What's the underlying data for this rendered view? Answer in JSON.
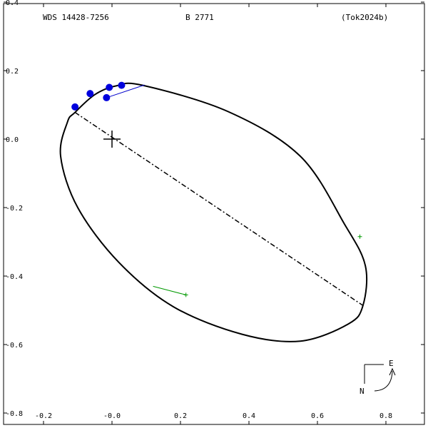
{
  "header": {
    "wds": "WDS 14428-7256",
    "discoverer": "B  2771",
    "reference": "(Tok2024b)"
  },
  "compass": {
    "east": "E",
    "north": "N"
  },
  "chart_data": {
    "type": "scatter",
    "title": "",
    "xlabel": "",
    "ylabel": "",
    "xlim": [
      -0.2,
      0.9
    ],
    "ylim": [
      -0.8,
      0.4
    ],
    "x_ticks": [
      "-0.2",
      "-0.0",
      "0.2",
      "0.4",
      "0.6",
      "0.8"
    ],
    "y_ticks": [
      "0.4",
      "0.2",
      "0.0",
      "-0.2",
      "-0.4",
      "-0.6",
      "-0.8"
    ],
    "grid": false,
    "primary_star": [
      0.0,
      0.0
    ],
    "line_of_apsides": [
      [
        -0.108,
        0.078
      ],
      [
        0.733,
        -0.486
      ]
    ],
    "orbit_points": [
      [
        0.09,
        0.157
      ],
      [
        0.34,
        0.08
      ],
      [
        0.55,
        -0.05
      ],
      [
        0.68,
        -0.25
      ],
      [
        0.74,
        -0.37
      ],
      [
        0.733,
        -0.486
      ],
      [
        0.69,
        -0.54
      ],
      [
        0.55,
        -0.59
      ],
      [
        0.38,
        -0.57
      ],
      [
        0.18,
        -0.49
      ],
      [
        0.02,
        -0.36
      ],
      [
        -0.1,
        -0.2
      ],
      [
        -0.15,
        -0.05
      ],
      [
        -0.13,
        0.05
      ],
      [
        -0.108,
        0.078
      ],
      [
        -0.05,
        0.13
      ],
      [
        0.01,
        0.155
      ],
      [
        0.09,
        0.157
      ]
    ],
    "observations_blue": [
      {
        "x": -0.108,
        "y": 0.094,
        "ox": -0.108,
        "oy": 0.094
      },
      {
        "x": -0.064,
        "y": 0.133,
        "ox": -0.064,
        "oy": 0.133
      },
      {
        "x": -0.016,
        "y": 0.121,
        "ox": 0.095,
        "oy": 0.158
      },
      {
        "x": -0.008,
        "y": 0.151,
        "ox": -0.008,
        "oy": 0.151
      },
      {
        "x": 0.028,
        "y": 0.157,
        "ox": 0.028,
        "oy": 0.157
      }
    ],
    "observations_green": [
      {
        "x": 0.216,
        "y": -0.455,
        "ox": 0.12,
        "oy": -0.43
      },
      {
        "x": 0.724,
        "y": -0.285,
        "ox": 0.724,
        "oy": -0.285
      }
    ]
  }
}
